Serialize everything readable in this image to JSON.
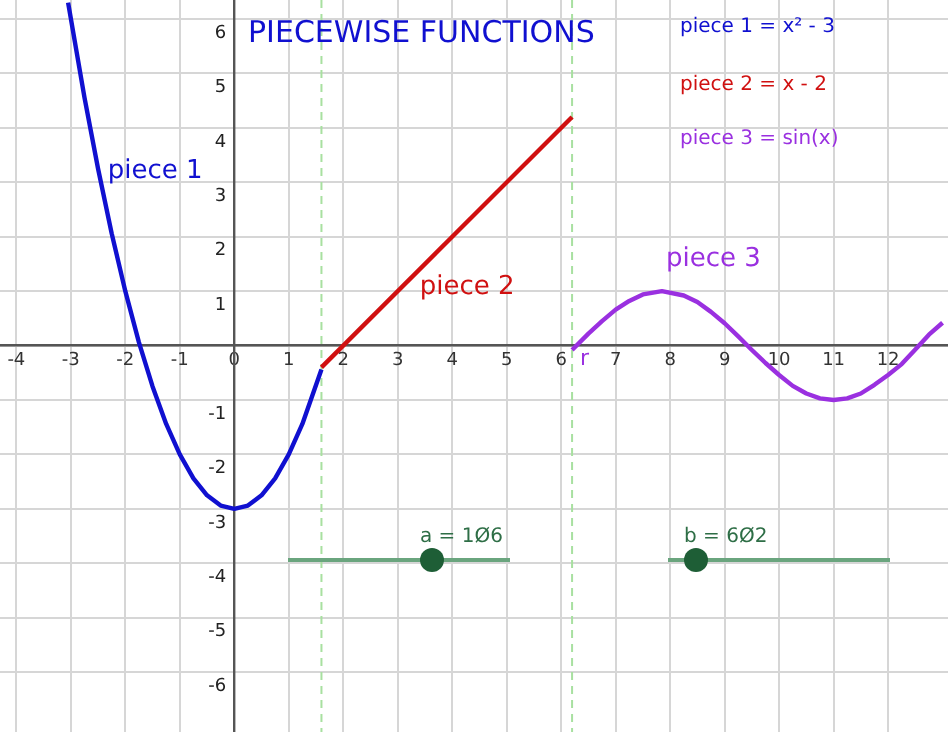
{
  "chart_data": {
    "type": "line",
    "title": "PIECEWISE FUNCTIONS",
    "xlim": [
      -4.3,
      13.1
    ],
    "ylim": [
      -7.1,
      6.35
    ],
    "xticks": [
      -4,
      -3,
      -2,
      -1,
      0,
      1,
      2,
      3,
      4,
      5,
      6,
      7,
      8,
      9,
      10,
      11,
      12
    ],
    "yticks": [
      -6,
      -5,
      -4,
      -3,
      -2,
      -1,
      {
        "value": 0,
        "label": null
      },
      1,
      2,
      3,
      4,
      5,
      6
    ],
    "grid": true,
    "marker": "none",
    "line_style": "solid",
    "series": [
      {
        "name": "piece 1",
        "color": "#1010d0",
        "x": [
          -3.05,
          -2.75,
          -2.5,
          -2.25,
          -2,
          -1.75,
          -1.5,
          -1.25,
          -1,
          -0.75,
          -0.5,
          -0.25,
          0,
          0.25,
          0.5,
          0.75,
          1,
          1.25,
          1.6
        ],
        "values": [
          6.3,
          4.56,
          3.25,
          2.06,
          1,
          0.06,
          -0.75,
          -1.44,
          -2,
          -2.44,
          -2.75,
          -2.94,
          -3,
          -2.94,
          -2.75,
          -2.44,
          -2,
          -1.44,
          -0.44
        ]
      },
      {
        "name": "piece 2",
        "color": "#d01010",
        "x": [
          1.6,
          6.2
        ],
        "values": [
          -0.4,
          4.2
        ]
      },
      {
        "name": "piece 3",
        "color": "#9a30e0",
        "x": [
          6.2,
          6.5,
          6.75,
          7,
          7.25,
          7.5,
          7.85,
          8.25,
          8.5,
          8.75,
          9,
          9.25,
          9.5,
          9.75,
          10,
          10.25,
          10.5,
          10.75,
          11,
          11.25,
          11.5,
          11.75,
          12,
          12.25,
          12.5,
          12.75,
          13
        ],
        "values": [
          -0.08,
          0.22,
          0.45,
          0.66,
          0.82,
          0.94,
          1,
          0.92,
          0.8,
          0.62,
          0.41,
          0.17,
          -0.08,
          -0.32,
          -0.54,
          -0.74,
          -0.88,
          -0.97,
          -1,
          -0.97,
          -0.88,
          -0.72,
          -0.54,
          -0.34,
          -0.07,
          0.2,
          0.42
        ]
      }
    ],
    "ref_lines": [
      {
        "axis": "x",
        "value": 1.6,
        "color": "#a8e0a0",
        "line_style": "dashed"
      },
      {
        "axis": "x",
        "value": 6.2,
        "color": "#a8e0a0",
        "line_style": "dashed"
      }
    ],
    "annotations": [
      "piece 1 = x² - 3",
      "piece 2 = x - 2",
      "piece 3 = sin(x)",
      "a = 1Ø6",
      "b = 6Ø2",
      {
        "text": "r",
        "x": 6.2,
        "y": 0
      }
    ]
  }
}
